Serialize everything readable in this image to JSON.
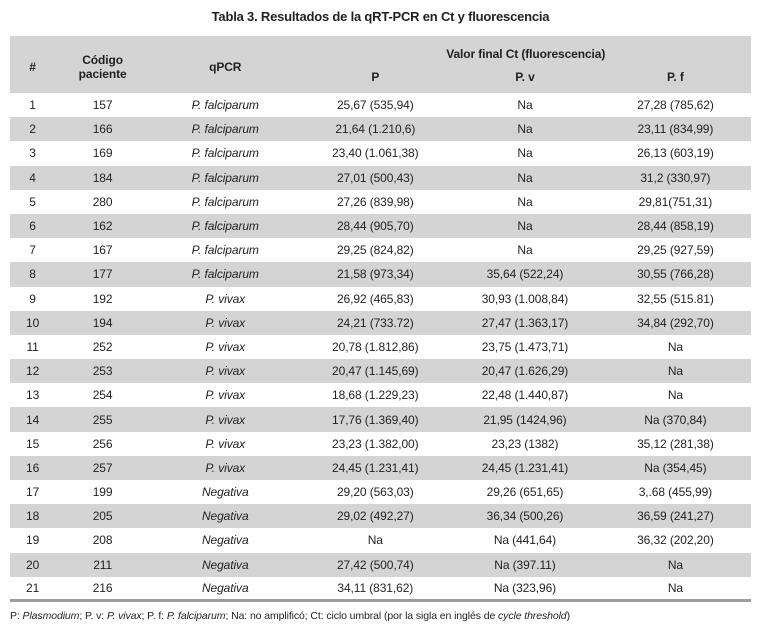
{
  "title": "Tabla 3. Resultados de la qRT-PCR en Ct y fluorescencia",
  "table": {
    "headers": {
      "num": "#",
      "codigo": "Código paciente",
      "qpcr": "qPCR",
      "valor_span": "Valor final Ct (fluorescencia)",
      "p": "P",
      "pv": "P. v",
      "pf": "P. f"
    },
    "rows": [
      {
        "num": "1",
        "codigo": "157",
        "qpcr": "P. falciparum",
        "p": "25,67 (535,94)",
        "pv": "Na",
        "pf": "27,28 (785,62)"
      },
      {
        "num": "2",
        "codigo": "166",
        "qpcr": "P. falciparum",
        "p": "21,64 (1.210,6)",
        "pv": "Na",
        "pf": "23,11 (834,99)"
      },
      {
        "num": "3",
        "codigo": "169",
        "qpcr": "P. falciparum",
        "p": "23,40 (1.061,38)",
        "pv": "Na",
        "pf": "26,13 (603,19)"
      },
      {
        "num": "4",
        "codigo": "184",
        "qpcr": "P. falciparum",
        "p": "27,01 (500,43)",
        "pv": "Na",
        "pf": "31,2 (330,97)"
      },
      {
        "num": "5",
        "codigo": "280",
        "qpcr": "P. falciparum",
        "p": "27,26 (839,98)",
        "pv": "Na",
        "pf": "29,81(751,31)"
      },
      {
        "num": "6",
        "codigo": "162",
        "qpcr": "P. falciparum",
        "p": "28,44 (905,70)",
        "pv": "Na",
        "pf": "28,44 (858,19)"
      },
      {
        "num": "7",
        "codigo": "167",
        "qpcr": "P. falciparum",
        "p": "29,25 (824,82)",
        "pv": "Na",
        "pf": "29,25 (927,59)"
      },
      {
        "num": "8",
        "codigo": "177",
        "qpcr": "P. falciparum",
        "p": "21,58 (973,34)",
        "pv": "35,64 (522,24)",
        "pf": "30,55 (766,28)"
      },
      {
        "num": "9",
        "codigo": "192",
        "qpcr": "P. vivax",
        "p": "26,92 (465,83)",
        "pv": "30,93 (1.008,84)",
        "pf": "32,55 (515.81)"
      },
      {
        "num": "10",
        "codigo": "194",
        "qpcr": "P. vivax",
        "p": "24,21 (733.72)",
        "pv": "27,47 (1.363,17)",
        "pf": "34,84 (292,70)"
      },
      {
        "num": "11",
        "codigo": "252",
        "qpcr": "P. vivax",
        "p": "20,78 (1.812,86)",
        "pv": "23,75 (1.473,71)",
        "pf": "Na"
      },
      {
        "num": "12",
        "codigo": "253",
        "qpcr": "P. vivax",
        "p": "20,47 (1.145,69)",
        "pv": "20,47 (1.626,29)",
        "pf": "Na"
      },
      {
        "num": "13",
        "codigo": "254",
        "qpcr": "P. vivax",
        "p": "18,68 (1.229,23)",
        "pv": "22,48 (1.440,87)",
        "pf": "Na"
      },
      {
        "num": "14",
        "codigo": "255",
        "qpcr": "P. vivax",
        "p": "17,76 (1.369,40)",
        "pv": "21,95 (1424,96)",
        "pf": "Na (370,84)"
      },
      {
        "num": "15",
        "codigo": "256",
        "qpcr": "P. vivax",
        "p": "23,23 (1.382,00)",
        "pv": "23,23 (1382)",
        "pf": "35,12 (281,38)"
      },
      {
        "num": "16",
        "codigo": "257",
        "qpcr": "P. vivax",
        "p": "24,45 (1.231,41)",
        "pv": "24,45 (1.231,41)",
        "pf": "Na (354,45)"
      },
      {
        "num": "17",
        "codigo": "199",
        "qpcr": "Negativa",
        "p": "29,20 (563,03)",
        "pv": "29,26 (651,65)",
        "pf": "3,.68 (455,99)"
      },
      {
        "num": "18",
        "codigo": "205",
        "qpcr": "Negativa",
        "p": "29,02 (492,27)",
        "pv": "36,34 (500,26)",
        "pf": "36,59 (241,27)"
      },
      {
        "num": "19",
        "codigo": "208",
        "qpcr": "Negativa",
        "p": "Na",
        "pv": "Na (441,64)",
        "pf": "36,32 (202,20)"
      },
      {
        "num": "20",
        "codigo": "211",
        "qpcr": "Negativa",
        "p": "27,42 (500,74)",
        "pv": "Na (397.11)",
        "pf": "Na"
      },
      {
        "num": "21",
        "codigo": "216",
        "qpcr": "Negativa",
        "p": "34,11 (831,62)",
        "pv": "Na (323,96)",
        "pf": "Na"
      }
    ]
  },
  "footnote": "P: Plasmodium; P. v: P. vivax; P. f: P. falciparum; Na: no amplificó; Ct: ciclo umbral (por la sigla en inglés de cycle threshold)",
  "footnote_segments": [
    {
      "t": "P: ",
      "i": false
    },
    {
      "t": "Plasmodium",
      "i": true
    },
    {
      "t": "; P. v: ",
      "i": false
    },
    {
      "t": "P. vivax",
      "i": true
    },
    {
      "t": "; P. f: ",
      "i": false
    },
    {
      "t": "P. falciparum",
      "i": true
    },
    {
      "t": "; Na: no amplificó; Ct: ciclo umbral (por la sigla en inglés de ",
      "i": false
    },
    {
      "t": "cycle threshold",
      "i": true
    },
    {
      "t": ")",
      "i": false
    }
  ],
  "colors": {
    "header_bg": "#d4d4d4",
    "stripe_bg": "#d4d4d4",
    "bottom_rule": "#9d9d9d",
    "text": "#231f20"
  }
}
